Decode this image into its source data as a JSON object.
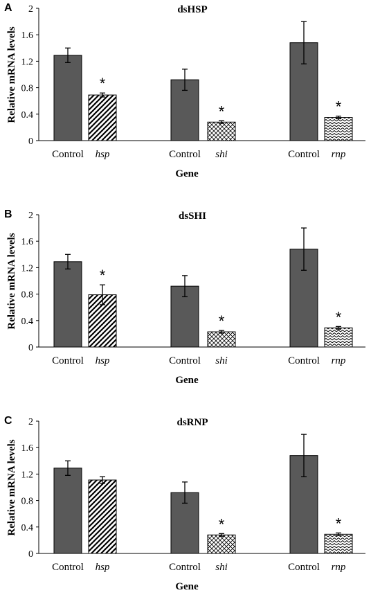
{
  "chart_data": [
    {
      "type": "bar",
      "panel_letter": "A",
      "title": "dsHSP",
      "xlabel": "Gene",
      "ylabel": "Relative mRNA levels",
      "ylim": [
        0,
        2
      ],
      "yticks": [
        "0",
        "0.4",
        "0.8",
        "1.2",
        "1.6",
        "2"
      ],
      "groups": [
        {
          "bars": [
            {
              "label": "Control",
              "value": 1.29,
              "error": 0.11,
              "pattern": "solid",
              "significant": false
            },
            {
              "label": "hsp",
              "value": 0.69,
              "error": 0.03,
              "pattern": "diagonal",
              "significant": true
            }
          ]
        },
        {
          "bars": [
            {
              "label": "Control",
              "value": 0.92,
              "error": 0.16,
              "pattern": "solid",
              "significant": false
            },
            {
              "label": "shi",
              "value": 0.28,
              "error": 0.02,
              "pattern": "crosshatch",
              "significant": true
            }
          ]
        },
        {
          "bars": [
            {
              "label": "Control",
              "value": 1.48,
              "error": 0.32,
              "pattern": "solid",
              "significant": false
            },
            {
              "label": "rnp",
              "value": 0.35,
              "error": 0.02,
              "pattern": "zigzag",
              "significant": true
            }
          ]
        }
      ]
    },
    {
      "type": "bar",
      "panel_letter": "B",
      "title": "dsSHI",
      "xlabel": "Gene",
      "ylabel": "Relative mRNA levels",
      "ylim": [
        0,
        2
      ],
      "yticks": [
        "0",
        "0.4",
        "0.8",
        "1.2",
        "1.6",
        "2"
      ],
      "groups": [
        {
          "bars": [
            {
              "label": "Control",
              "value": 1.29,
              "error": 0.11,
              "pattern": "solid",
              "significant": false
            },
            {
              "label": "hsp",
              "value": 0.79,
              "error": 0.15,
              "pattern": "diagonal",
              "significant": true
            }
          ]
        },
        {
          "bars": [
            {
              "label": "Control",
              "value": 0.92,
              "error": 0.16,
              "pattern": "solid",
              "significant": false
            },
            {
              "label": "shi",
              "value": 0.23,
              "error": 0.02,
              "pattern": "crosshatch",
              "significant": true
            }
          ]
        },
        {
          "bars": [
            {
              "label": "Control",
              "value": 1.48,
              "error": 0.32,
              "pattern": "solid",
              "significant": false
            },
            {
              "label": "rnp",
              "value": 0.29,
              "error": 0.02,
              "pattern": "zigzag",
              "significant": true
            }
          ]
        }
      ]
    },
    {
      "type": "bar",
      "panel_letter": "C",
      "title": "dsRNP",
      "xlabel": "Gene",
      "ylabel": "Relative mRNA levels",
      "ylim": [
        0,
        2
      ],
      "yticks": [
        "0",
        "0.4",
        "0.8",
        "1.2",
        "1.6",
        "2"
      ],
      "groups": [
        {
          "bars": [
            {
              "label": "Control",
              "value": 1.29,
              "error": 0.11,
              "pattern": "solid",
              "significant": false
            },
            {
              "label": "hsp",
              "value": 1.11,
              "error": 0.05,
              "pattern": "diagonal",
              "significant": false
            }
          ]
        },
        {
          "bars": [
            {
              "label": "Control",
              "value": 0.92,
              "error": 0.16,
              "pattern": "solid",
              "significant": false
            },
            {
              "label": "shi",
              "value": 0.28,
              "error": 0.02,
              "pattern": "crosshatch",
              "significant": true
            }
          ]
        },
        {
          "bars": [
            {
              "label": "Control",
              "value": 1.48,
              "error": 0.32,
              "pattern": "solid",
              "significant": false
            },
            {
              "label": "rnp",
              "value": 0.29,
              "error": 0.02,
              "pattern": "zigzag",
              "significant": true
            }
          ]
        }
      ]
    }
  ],
  "significance_marker": "*",
  "colors": {
    "control_bar": "#595959",
    "pattern_ink": "#000000",
    "axis": "#000000"
  }
}
